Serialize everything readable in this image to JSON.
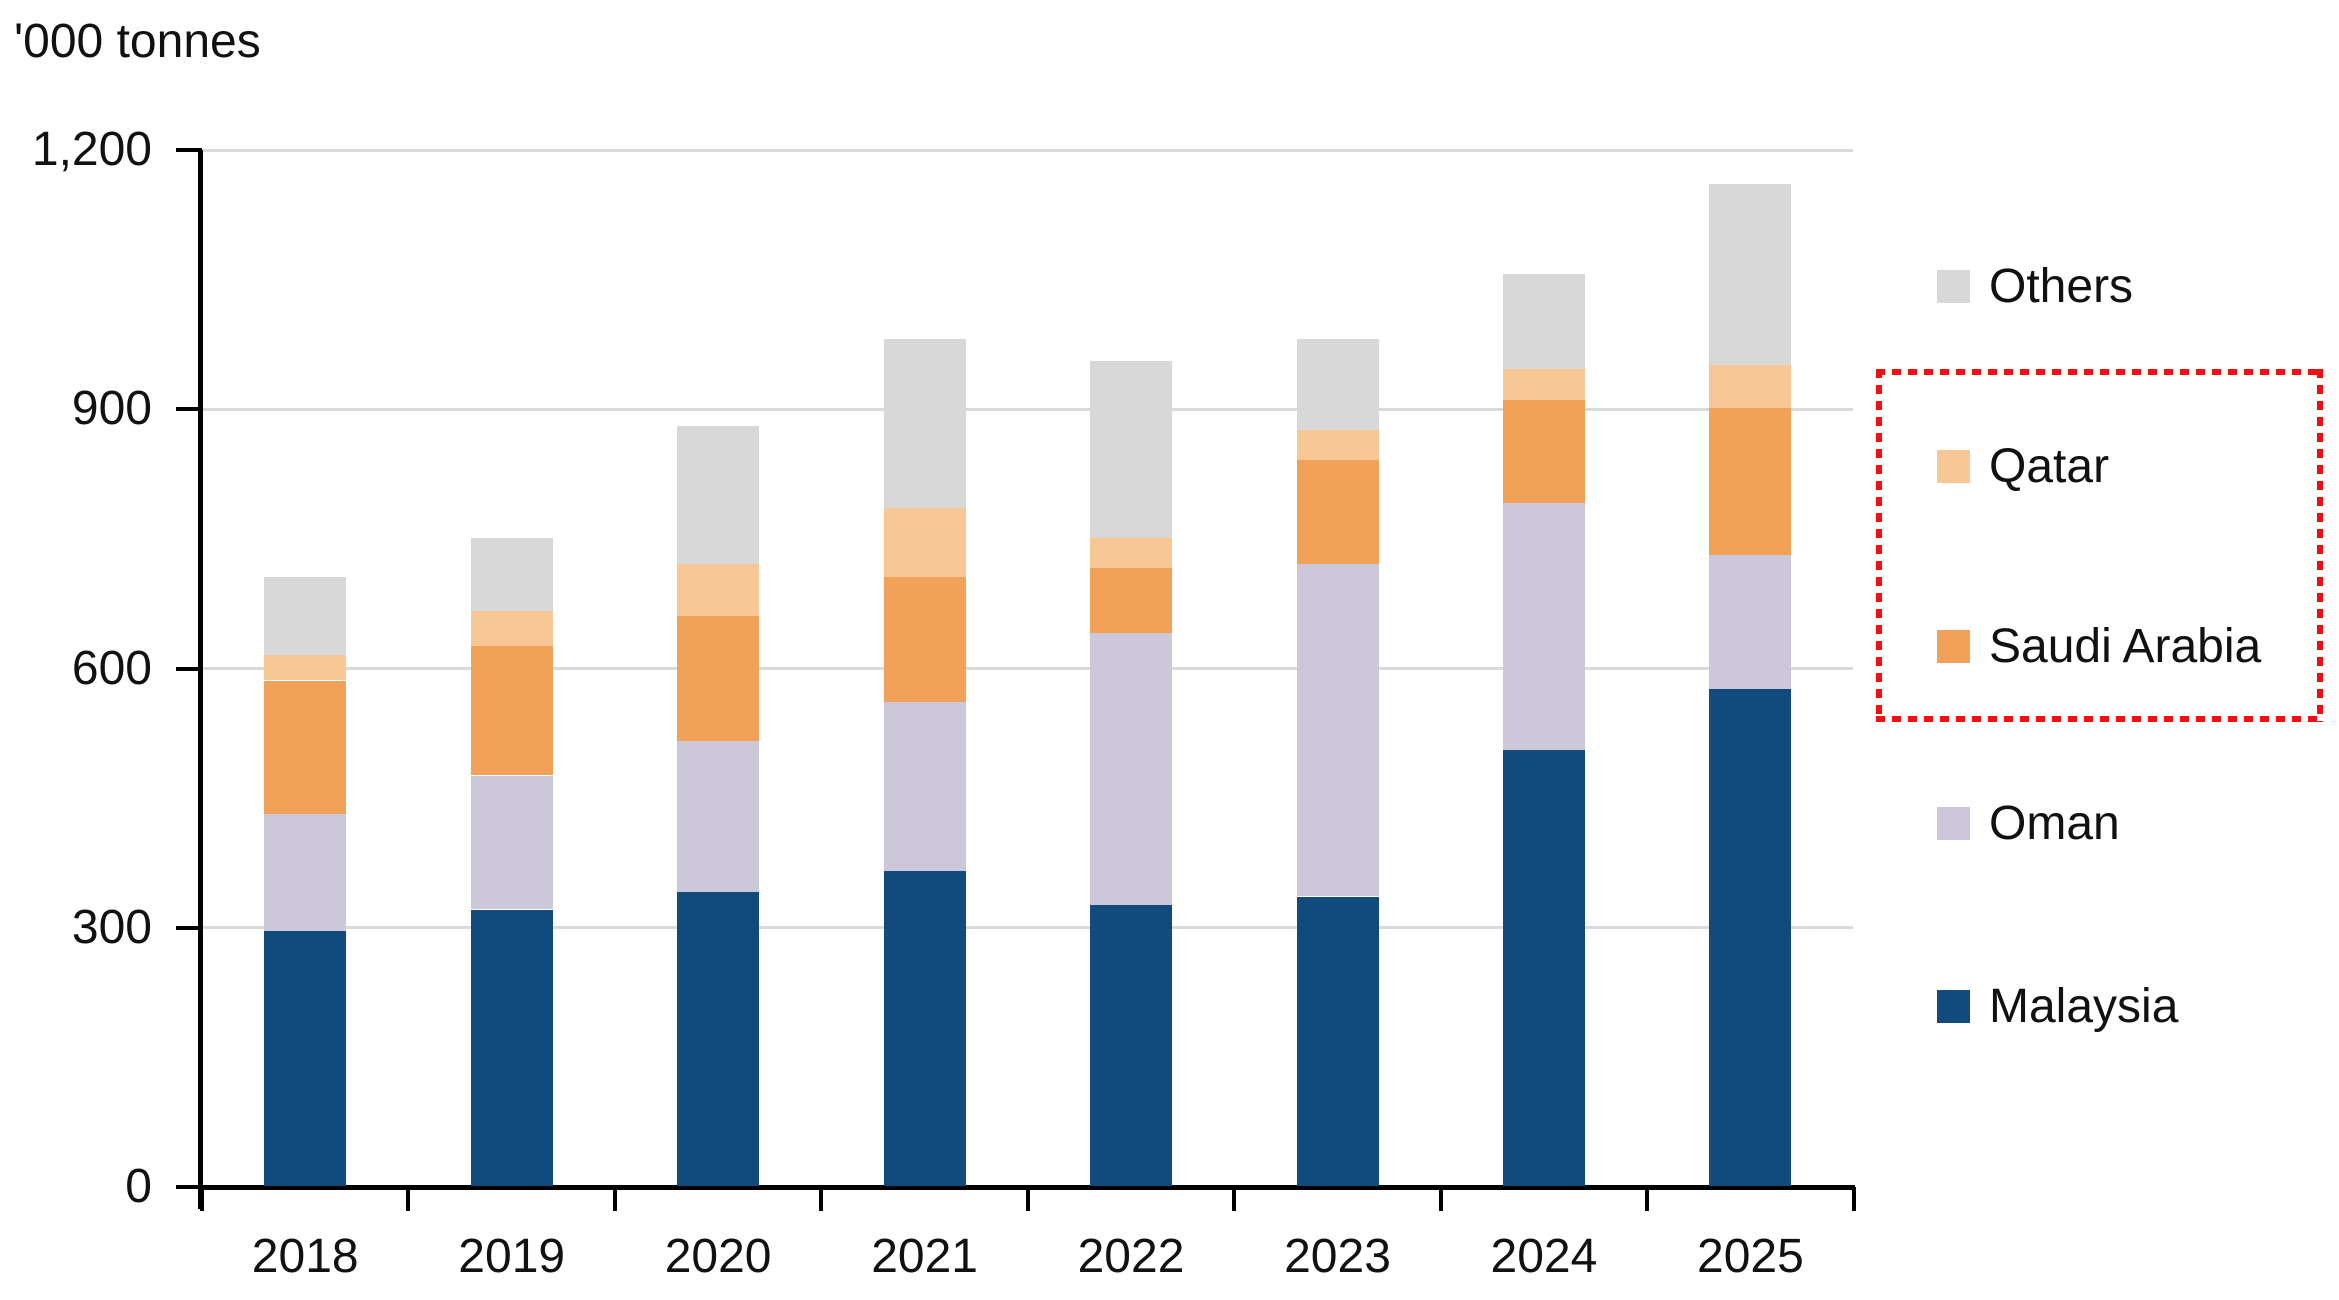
{
  "chart_data": {
    "type": "bar",
    "stacked": true,
    "title": "'000 tonnes",
    "ylabel": "'000 tonnes",
    "categories": [
      "2018",
      "2019",
      "2020",
      "2021",
      "2022",
      "2023",
      "2024",
      "2025"
    ],
    "series": [
      {
        "name": "Malaysia",
        "color": "#114b7e",
        "values": [
          295,
          320,
          340,
          365,
          325,
          335,
          505,
          575
        ]
      },
      {
        "name": "Oman",
        "color": "#cdc7da",
        "values": [
          135,
          155,
          175,
          195,
          315,
          385,
          285,
          155
        ]
      },
      {
        "name": "Saudi Arabia",
        "color": "#f2a158",
        "values": [
          155,
          150,
          145,
          145,
          75,
          120,
          120,
          170
        ]
      },
      {
        "name": "Qatar",
        "color": "#f7c795",
        "values": [
          30,
          40,
          60,
          80,
          35,
          35,
          35,
          50
        ]
      },
      {
        "name": "Others",
        "color": "#d8d8d8",
        "values": [
          90,
          85,
          160,
          195,
          205,
          105,
          110,
          210
        ]
      }
    ],
    "totals": [
      705,
      750,
      880,
      980,
      955,
      980,
      1055,
      1160
    ],
    "ylim": [
      0,
      1200
    ],
    "yticks": [
      {
        "value": 0,
        "label": "0"
      },
      {
        "value": 300,
        "label": "300"
      },
      {
        "value": 600,
        "label": "600"
      },
      {
        "value": 900,
        "label": "900"
      },
      {
        "value": 1200,
        "label": "1,200"
      }
    ],
    "grid": "horizontal",
    "legend_position": "right",
    "legend_order": [
      "Others",
      "Qatar",
      "Saudi Arabia",
      "Oman",
      "Malaysia"
    ],
    "annotation": {
      "type": "highlight-box",
      "shape": "dotted-rectangle",
      "color": "#ee1111",
      "encloses": [
        "Qatar",
        "Saudi Arabia"
      ]
    }
  },
  "colors": {
    "axis": "#000000",
    "gridline": "#dadada",
    "text": "#111111",
    "background": "#ffffff"
  }
}
